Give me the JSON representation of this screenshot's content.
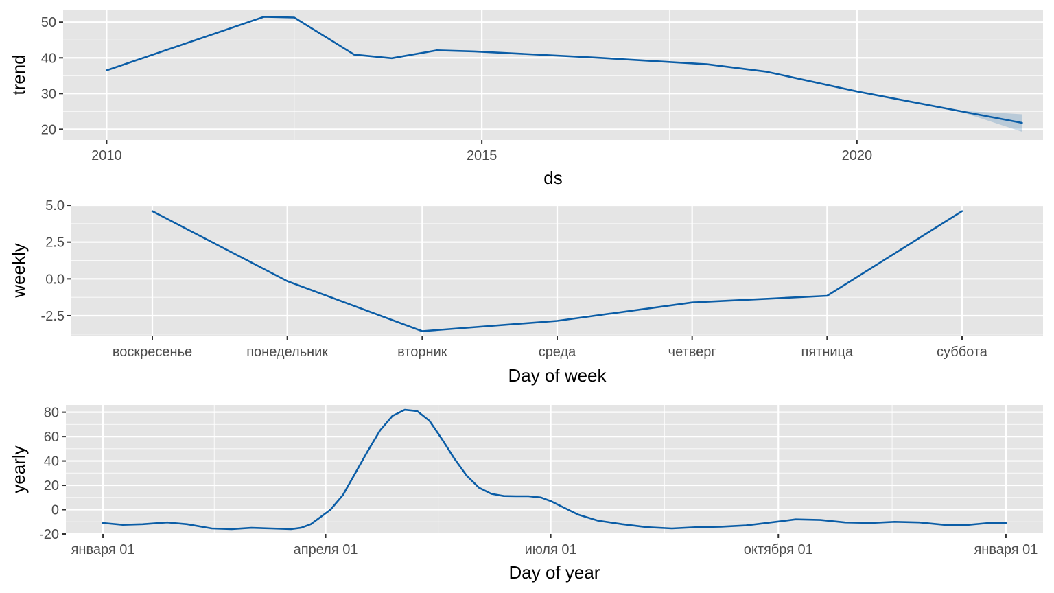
{
  "colors": {
    "line": "#0b5da6",
    "band": "#0b5da6",
    "panel": "#e5e5e5"
  },
  "chart_data": [
    {
      "id": "trend",
      "type": "line",
      "x_kind": "year",
      "xlabel": "ds",
      "ylabel": "trend",
      "xlim": [
        2009.42,
        2022.48
      ],
      "ylim": [
        17.0,
        53.5
      ],
      "xticks": [
        2010,
        2015,
        2020
      ],
      "xtick_labels": [
        "2010",
        "2015",
        "2020"
      ],
      "yticks": [
        20,
        30,
        40,
        50
      ],
      "ytick_labels": [
        "20",
        "30",
        "40",
        "50"
      ],
      "grid": true,
      "series": [
        {
          "x": [
            2010.0,
            2012.1,
            2012.5,
            2013.3,
            2013.8,
            2014.4,
            2014.9,
            2016.5,
            2018.0,
            2018.8,
            2020.0,
            2021.4,
            2022.2
          ],
          "y": [
            36.5,
            51.5,
            51.3,
            40.9,
            39.9,
            42.1,
            41.8,
            40.1,
            38.2,
            36.1,
            30.6,
            25.0,
            21.8
          ],
          "band_lower": [
            36.5,
            51.5,
            51.3,
            40.9,
            39.9,
            42.1,
            41.8,
            40.1,
            38.2,
            36.1,
            30.6,
            24.8,
            19.3
          ],
          "band_upper": [
            36.5,
            51.5,
            51.3,
            40.9,
            39.9,
            42.1,
            41.8,
            40.1,
            38.2,
            36.1,
            30.6,
            25.2,
            24.2
          ]
        }
      ]
    },
    {
      "id": "weekly",
      "type": "line",
      "x_kind": "category",
      "xlabel": "Day of week",
      "ylabel": "weekly",
      "categories": [
        "воскресенье",
        "понедельник",
        "вторник",
        "среда",
        "четверг",
        "пятница",
        "суббота"
      ],
      "ylim": [
        -3.9,
        5.05
      ],
      "yticks": [
        -2.5,
        0.0,
        2.5,
        5.0
      ],
      "ytick_labels": [
        "-2.5",
        "0.0",
        "2.5",
        "5.0"
      ],
      "grid": true,
      "series": [
        {
          "values": [
            4.6,
            -0.15,
            -3.55,
            -2.85,
            -1.6,
            -1.15,
            4.6
          ]
        }
      ]
    },
    {
      "id": "yearly",
      "type": "line",
      "x_kind": "day-of-year",
      "xlabel": "Day of year",
      "ylabel": "yearly",
      "xlim": [
        -15,
        380
      ],
      "ylim": [
        -20,
        86
      ],
      "xticks": [
        0,
        90,
        181,
        273,
        365
      ],
      "xtick_labels": [
        "января 01",
        "апреля 01",
        "июля 01",
        "октября 01",
        "января 01"
      ],
      "yticks": [
        -20,
        0,
        20,
        40,
        60,
        80
      ],
      "ytick_labels": [
        "-20",
        "0",
        "20",
        "40",
        "60",
        "80"
      ],
      "grid": true,
      "series": [
        {
          "x": [
            0,
            8,
            16,
            26,
            34,
            44,
            52,
            60,
            68,
            76,
            80,
            84,
            88,
            92,
            97,
            102,
            107,
            112,
            117,
            122,
            127,
            132,
            137,
            142,
            147,
            152,
            157,
            162,
            167,
            172,
            177,
            181,
            186,
            192,
            200,
            210,
            220,
            230,
            240,
            250,
            260,
            270,
            280,
            290,
            300,
            310,
            320,
            330,
            340,
            350,
            358,
            365
          ],
          "y": [
            -11,
            -12.5,
            -12,
            -10.5,
            -12,
            -15.5,
            -16,
            -15,
            -15.5,
            -16,
            -15,
            -12,
            -6,
            0,
            12,
            30,
            48,
            65,
            77,
            82,
            81,
            73,
            58,
            42,
            28,
            18,
            13,
            11.2,
            11,
            11,
            10,
            7,
            2,
            -4,
            -9,
            -12,
            -14.5,
            -15.5,
            -14.5,
            -14,
            -13,
            -10.5,
            -8,
            -8.5,
            -10.5,
            -11,
            -10,
            -10.5,
            -12.5,
            -12.5,
            -11,
            -11
          ]
        }
      ]
    }
  ]
}
